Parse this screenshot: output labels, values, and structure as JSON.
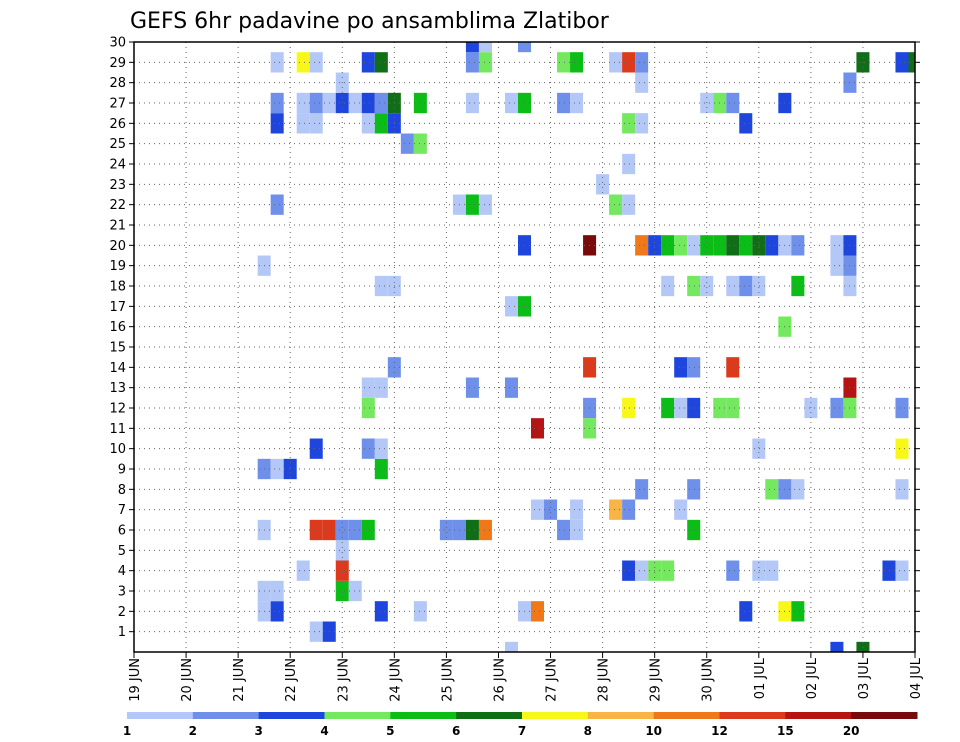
{
  "chart_data": {
    "type": "heatmap",
    "title": "GEFS 6hr padavine po ansamblima Zlatibor",
    "xlabel": "",
    "ylabel": "",
    "x_tick_labels": [
      "19 JUN",
      "20 JUN",
      "21 JUN",
      "22 JUN",
      "23 JUN",
      "24 JUN",
      "25 JUN",
      "26 JUN",
      "27 JUN",
      "28 JUN",
      "29 JUN",
      "30 JUN",
      "01 JUL",
      "02 JUL",
      "03 JUL",
      "04 JUL"
    ],
    "y_tick_labels": [
      "1",
      "2",
      "3",
      "4",
      "5",
      "6",
      "7",
      "8",
      "9",
      "10",
      "11",
      "12",
      "13",
      "14",
      "15",
      "16",
      "17",
      "18",
      "19",
      "20",
      "21",
      "22",
      "23",
      "24",
      "25",
      "26",
      "27",
      "28",
      "29",
      "30"
    ],
    "xlim_days": [
      0,
      15
    ],
    "ylim_members": [
      0,
      30
    ],
    "step_days": 0.25,
    "grid": "dotted",
    "colorbar": {
      "levels": [
        "1",
        "2",
        "3",
        "4",
        "5",
        "6",
        "7",
        "8",
        "10",
        "12",
        "15",
        "20"
      ],
      "colors": [
        "#b4c8f8",
        "#6e90ea",
        "#1e46dc",
        "#74e85e",
        "#0cbd17",
        "#0f6e16",
        "#f8f818",
        "#f8b444",
        "#f07818",
        "#dc3a1c",
        "#b41414",
        "#780a0a"
      ]
    },
    "cells": [
      [
        13.5,
        0,
        3
      ],
      [
        14,
        0,
        6
      ],
      [
        7.25,
        0,
        1
      ],
      [
        3.5,
        1,
        1
      ],
      [
        3.75,
        1,
        3
      ],
      [
        2.5,
        2,
        1
      ],
      [
        2.75,
        2,
        3
      ],
      [
        4.75,
        2,
        3
      ],
      [
        5.5,
        2,
        1
      ],
      [
        7.5,
        2,
        1
      ],
      [
        7.75,
        2,
        9
      ],
      [
        11.75,
        2,
        3
      ],
      [
        12.5,
        2,
        7
      ],
      [
        12.75,
        2,
        5
      ],
      [
        2.5,
        3,
        1
      ],
      [
        2.75,
        3,
        1
      ],
      [
        4,
        3,
        5
      ],
      [
        4.25,
        3,
        1
      ],
      [
        3.25,
        4,
        1
      ],
      [
        4,
        4,
        10
      ],
      [
        9.5,
        4,
        3
      ],
      [
        9.75,
        4,
        1
      ],
      [
        10,
        4,
        4
      ],
      [
        10.25,
        4,
        4
      ],
      [
        11.5,
        4,
        2
      ],
      [
        12,
        4,
        1
      ],
      [
        12.25,
        4,
        1
      ],
      [
        14.5,
        4,
        3
      ],
      [
        14.75,
        4,
        1
      ],
      [
        4,
        5,
        1
      ],
      [
        2.5,
        6,
        1
      ],
      [
        3.5,
        6,
        10
      ],
      [
        3.75,
        6,
        10
      ],
      [
        4,
        6,
        2
      ],
      [
        4.25,
        6,
        2
      ],
      [
        4.5,
        6,
        5
      ],
      [
        6,
        6,
        2
      ],
      [
        6.25,
        6,
        2
      ],
      [
        6.5,
        6,
        6
      ],
      [
        6.75,
        6,
        9
      ],
      [
        8.25,
        6,
        2
      ],
      [
        8.5,
        6,
        1
      ],
      [
        10.75,
        6,
        5
      ],
      [
        7.75,
        7,
        1
      ],
      [
        8,
        7,
        2
      ],
      [
        8.5,
        7,
        1
      ],
      [
        9.25,
        7,
        8
      ],
      [
        9.5,
        7,
        2
      ],
      [
        10.5,
        7,
        1
      ],
      [
        9.75,
        8,
        2
      ],
      [
        10.75,
        8,
        2
      ],
      [
        12.25,
        8,
        4
      ],
      [
        12.5,
        8,
        2
      ],
      [
        12.75,
        8,
        1
      ],
      [
        14.75,
        8,
        1
      ],
      [
        2.5,
        9,
        2
      ],
      [
        2.75,
        9,
        1
      ],
      [
        3,
        9,
        3
      ],
      [
        4.75,
        9,
        5
      ],
      [
        3.5,
        10,
        3
      ],
      [
        4.5,
        10,
        2
      ],
      [
        4.75,
        10,
        1
      ],
      [
        12,
        10,
        1
      ],
      [
        14.75,
        10,
        7
      ],
      [
        7.75,
        11,
        11
      ],
      [
        8.75,
        11,
        4
      ],
      [
        4.5,
        12,
        4
      ],
      [
        8.75,
        12,
        2
      ],
      [
        9.5,
        12,
        7
      ],
      [
        10.25,
        12,
        5
      ],
      [
        10.5,
        12,
        1
      ],
      [
        10.75,
        12,
        3
      ],
      [
        11.25,
        12,
        4
      ],
      [
        11.5,
        12,
        4
      ],
      [
        13,
        12,
        1
      ],
      [
        13.5,
        12,
        2
      ],
      [
        13.75,
        12,
        4
      ],
      [
        14.75,
        12,
        2
      ],
      [
        4.5,
        13,
        1
      ],
      [
        4.75,
        13,
        1
      ],
      [
        6.5,
        13,
        2
      ],
      [
        7.25,
        13,
        2
      ],
      [
        13.75,
        13,
        11
      ],
      [
        5,
        14,
        2
      ],
      [
        8.75,
        14,
        10
      ],
      [
        10.5,
        14,
        3
      ],
      [
        10.75,
        14,
        2
      ],
      [
        11.5,
        14,
        10
      ],
      [
        12.5,
        16,
        4
      ],
      [
        7.25,
        17,
        1
      ],
      [
        7.5,
        17,
        5
      ],
      [
        4.75,
        18,
        1
      ],
      [
        5,
        18,
        1
      ],
      [
        10.25,
        18,
        1
      ],
      [
        10.75,
        18,
        4
      ],
      [
        11,
        18,
        1
      ],
      [
        11.5,
        18,
        1
      ],
      [
        11.75,
        18,
        2
      ],
      [
        12,
        18,
        1
      ],
      [
        12.75,
        18,
        5
      ],
      [
        13.75,
        18,
        1
      ],
      [
        2.5,
        19,
        1
      ],
      [
        13.5,
        19,
        1
      ],
      [
        13.75,
        19,
        2
      ],
      [
        7.5,
        20,
        3
      ],
      [
        8.75,
        20,
        12
      ],
      [
        9.75,
        20,
        9
      ],
      [
        10,
        20,
        3
      ],
      [
        10.25,
        20,
        5
      ],
      [
        10.5,
        20,
        4
      ],
      [
        10.75,
        20,
        1
      ],
      [
        11,
        20,
        5
      ],
      [
        11.25,
        20,
        5
      ],
      [
        11.5,
        20,
        6
      ],
      [
        11.75,
        20,
        5
      ],
      [
        12,
        20,
        6
      ],
      [
        12.25,
        20,
        3
      ],
      [
        12.5,
        20,
        1
      ],
      [
        12.75,
        20,
        2
      ],
      [
        13.5,
        20,
        1
      ],
      [
        13.75,
        20,
        3
      ],
      [
        2.75,
        22,
        2
      ],
      [
        6.25,
        22,
        1
      ],
      [
        6.5,
        22,
        5
      ],
      [
        6.75,
        22,
        1
      ],
      [
        9.25,
        22,
        4
      ],
      [
        9.5,
        22,
        1
      ],
      [
        9,
        23,
        1
      ],
      [
        9.5,
        24,
        1
      ],
      [
        5.25,
        25,
        2
      ],
      [
        5.5,
        25,
        4
      ],
      [
        2.75,
        26,
        3
      ],
      [
        3.25,
        26,
        1
      ],
      [
        3.5,
        26,
        1
      ],
      [
        4.5,
        26,
        1
      ],
      [
        4.75,
        26,
        5
      ],
      [
        5,
        26,
        3
      ],
      [
        9.5,
        26,
        4
      ],
      [
        9.75,
        26,
        1
      ],
      [
        11.75,
        26,
        3
      ],
      [
        2.75,
        27,
        2
      ],
      [
        3.25,
        27,
        1
      ],
      [
        3.5,
        27,
        2
      ],
      [
        3.75,
        27,
        1
      ],
      [
        4,
        27,
        3
      ],
      [
        4.25,
        27,
        1
      ],
      [
        4.5,
        27,
        3
      ],
      [
        4.75,
        27,
        2
      ],
      [
        5,
        27,
        6
      ],
      [
        5.5,
        27,
        5
      ],
      [
        6.5,
        27,
        1
      ],
      [
        7.25,
        27,
        1
      ],
      [
        7.5,
        27,
        5
      ],
      [
        8.25,
        27,
        2
      ],
      [
        8.5,
        27,
        1
      ],
      [
        11,
        27,
        1
      ],
      [
        11.25,
        27,
        4
      ],
      [
        11.5,
        27,
        2
      ],
      [
        12.5,
        27,
        3
      ],
      [
        4,
        28,
        1
      ],
      [
        9.75,
        28,
        1
      ],
      [
        13.75,
        28,
        2
      ],
      [
        2.75,
        29,
        1
      ],
      [
        3.25,
        29,
        7
      ],
      [
        3.5,
        29,
        1
      ],
      [
        4.5,
        29,
        3
      ],
      [
        4.75,
        29,
        6
      ],
      [
        6.5,
        29,
        2
      ],
      [
        6.75,
        29,
        4
      ],
      [
        8.25,
        29,
        4
      ],
      [
        8.5,
        29,
        5
      ],
      [
        9.25,
        29,
        1
      ],
      [
        9.5,
        29,
        10
      ],
      [
        9.75,
        29,
        2
      ],
      [
        14,
        29,
        6
      ],
      [
        14.75,
        29,
        3
      ],
      [
        15,
        29,
        6
      ],
      [
        6.5,
        30,
        3
      ],
      [
        6.75,
        30,
        1
      ],
      [
        7.5,
        30,
        2
      ]
    ]
  }
}
